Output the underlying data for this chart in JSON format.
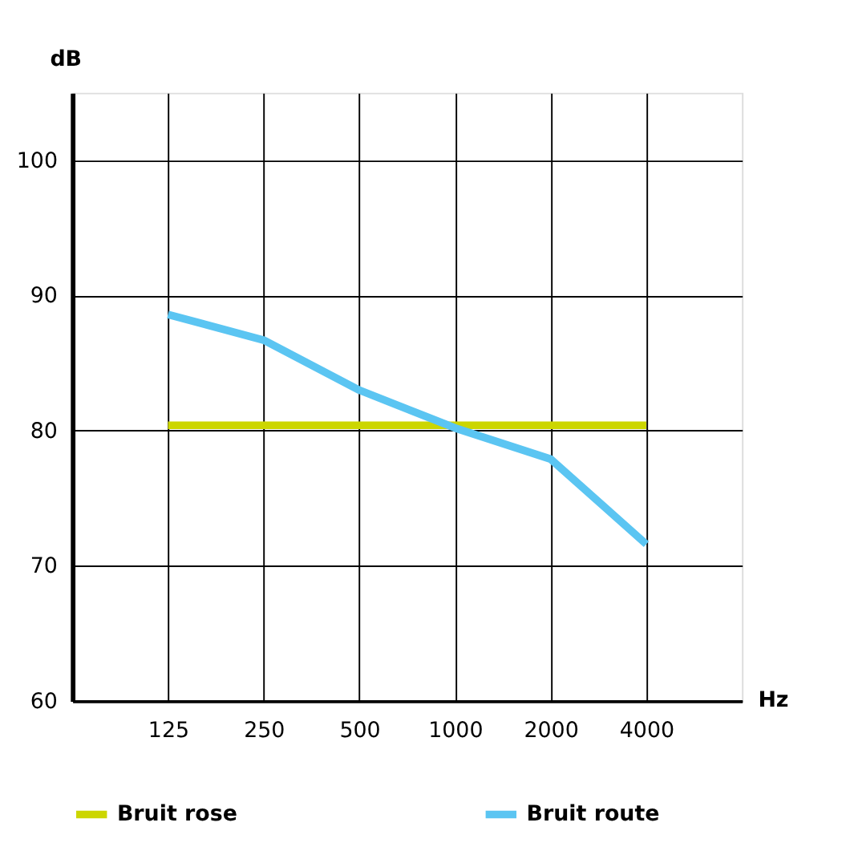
{
  "chart_data": {
    "type": "line",
    "categories": [
      "125",
      "250",
      "500",
      "1000",
      "2000",
      "4000"
    ],
    "series": [
      {
        "name": "Bruit rose",
        "color": "#ccd600",
        "values": [
          80.4,
          80.4,
          80.4,
          80.4,
          80.4,
          80.4
        ]
      },
      {
        "name": "Bruit route",
        "color": "#5bc5f2",
        "values": [
          88.6,
          86.7,
          83.0,
          80.2,
          77.9,
          71.6
        ]
      }
    ],
    "xlabel": "Hz",
    "ylabel": "dB",
    "ylim": [
      60,
      105
    ],
    "yticks": [
      60,
      70,
      80,
      90,
      100
    ],
    "grid": true,
    "legend": "bottom",
    "marker": "none",
    "line_style": "solid"
  }
}
